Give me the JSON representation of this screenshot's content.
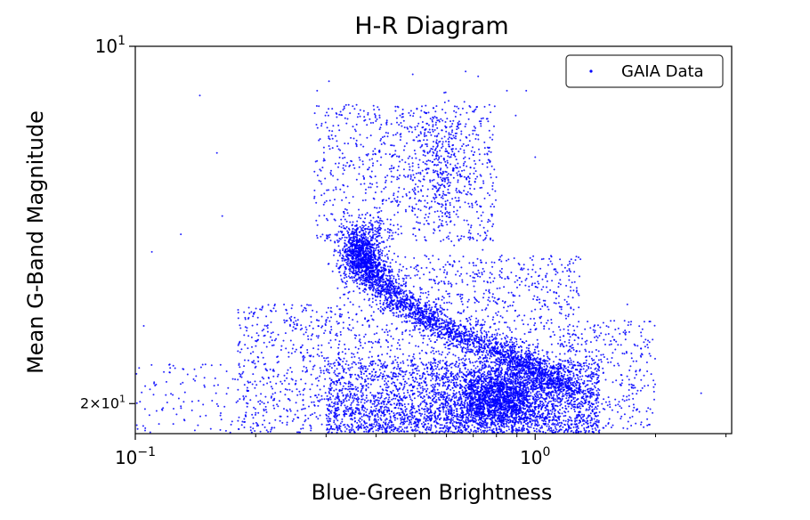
{
  "chart_data": {
    "type": "scatter",
    "title": "H-R Diagram",
    "xlabel": "Blue-Green Brightness",
    "ylabel": "Mean G-Band Magnitude",
    "xscale": "log",
    "yscale": "log",
    "y_inverted": true,
    "xlim": [
      0.1,
      3.1
    ],
    "ylim": [
      10,
      21.2
    ],
    "x_ticks": [
      {
        "value": 0.1,
        "base": "10",
        "exp": "−1"
      },
      {
        "value": 1.0,
        "base": "10",
        "exp": "0"
      }
    ],
    "y_ticks": [
      {
        "value": 10,
        "label": "10",
        "exp": "1"
      },
      {
        "value": 20,
        "label": "2×10",
        "exp": "1"
      }
    ],
    "x_minor_ticks": [
      0.2,
      0.3,
      0.4,
      0.5,
      0.6,
      0.7,
      0.8,
      0.9,
      2,
      3
    ],
    "grid": false,
    "legend": {
      "position": "top-right",
      "entries": [
        "GAIA Data"
      ]
    },
    "series": [
      {
        "name": "GAIA Data",
        "color": "#0000ff",
        "marker": "point",
        "approx_count": 9000,
        "regions": [
          {
            "kind": "main_sequence_ridge",
            "path": [
              [
                0.36,
                14.7
              ],
              [
                0.38,
                15.4
              ],
              [
                0.42,
                16.0
              ],
              [
                0.5,
                16.7
              ],
              [
                0.6,
                17.3
              ],
              [
                0.75,
                17.9
              ],
              [
                0.9,
                18.4
              ],
              [
                1.05,
                18.9
              ],
              [
                1.25,
                19.5
              ]
            ]
          },
          {
            "kind": "turnoff_clump",
            "center": [
              0.37,
              14.8
            ]
          },
          {
            "kind": "dense_lower_region",
            "x_range": [
              0.3,
              1.4
            ],
            "y_range": [
              18.5,
              21.2
            ]
          },
          {
            "kind": "giant_branch_spread",
            "x_range": [
              0.28,
              0.8
            ],
            "y_range": [
              10.5,
              14.5
            ]
          },
          {
            "kind": "sparse_blue_scatter",
            "x_range": [
              0.1,
              0.3
            ],
            "y_range": [
              11.5,
              21.2
            ]
          },
          {
            "kind": "red_tail",
            "x_range": [
              1.2,
              2.6
            ],
            "y_range": [
              15,
              21
            ]
          }
        ],
        "notable_points": [
          [
            0.145,
            11.0
          ],
          [
            0.16,
            12.3
          ],
          [
            0.165,
            13.9
          ],
          [
            0.13,
            14.4
          ],
          [
            0.11,
            14.9
          ],
          [
            0.105,
            17.2
          ],
          [
            0.285,
            10.9
          ],
          [
            0.305,
            10.7
          ],
          [
            0.67,
            10.5
          ],
          [
            0.72,
            10.6
          ],
          [
            0.85,
            10.9
          ],
          [
            0.95,
            10.9
          ],
          [
            1.2,
            10.0
          ],
          [
            0.6,
            11.7
          ],
          [
            0.65,
            12.0
          ],
          [
            1.0,
            12.4
          ],
          [
            1.7,
            16.5
          ],
          [
            2.6,
            19.6
          ],
          [
            1.9,
            20.3
          ],
          [
            1.7,
            21.0
          ],
          [
            0.245,
            17.7
          ],
          [
            0.275,
            16.9
          ],
          [
            0.23,
            20.5
          ],
          [
            0.13,
            20.1
          ]
        ]
      }
    ]
  }
}
